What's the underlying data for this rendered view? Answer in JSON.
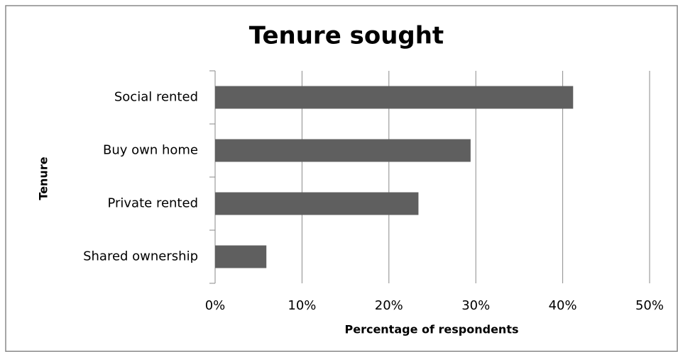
{
  "chart_data": {
    "type": "hbar",
    "title": "Tenure sought",
    "categories": [
      "Social rented",
      "Buy own home",
      "Private rented",
      "Shared ownership"
    ],
    "values": [
      41.2,
      29.4,
      23.4,
      5.9
    ],
    "color": "#5f5f5f",
    "xlabel": "Percentage of respondents",
    "ylabel": "Tenure",
    "xlim": [
      0,
      50
    ],
    "xticks": [
      {
        "value": 0,
        "label": "0%"
      },
      {
        "value": 10,
        "label": "10%"
      },
      {
        "value": 20,
        "label": "20%"
      },
      {
        "value": 30,
        "label": "30%"
      },
      {
        "value": 40,
        "label": "40%"
      },
      {
        "value": 50,
        "label": "50%"
      }
    ],
    "grid": true
  }
}
